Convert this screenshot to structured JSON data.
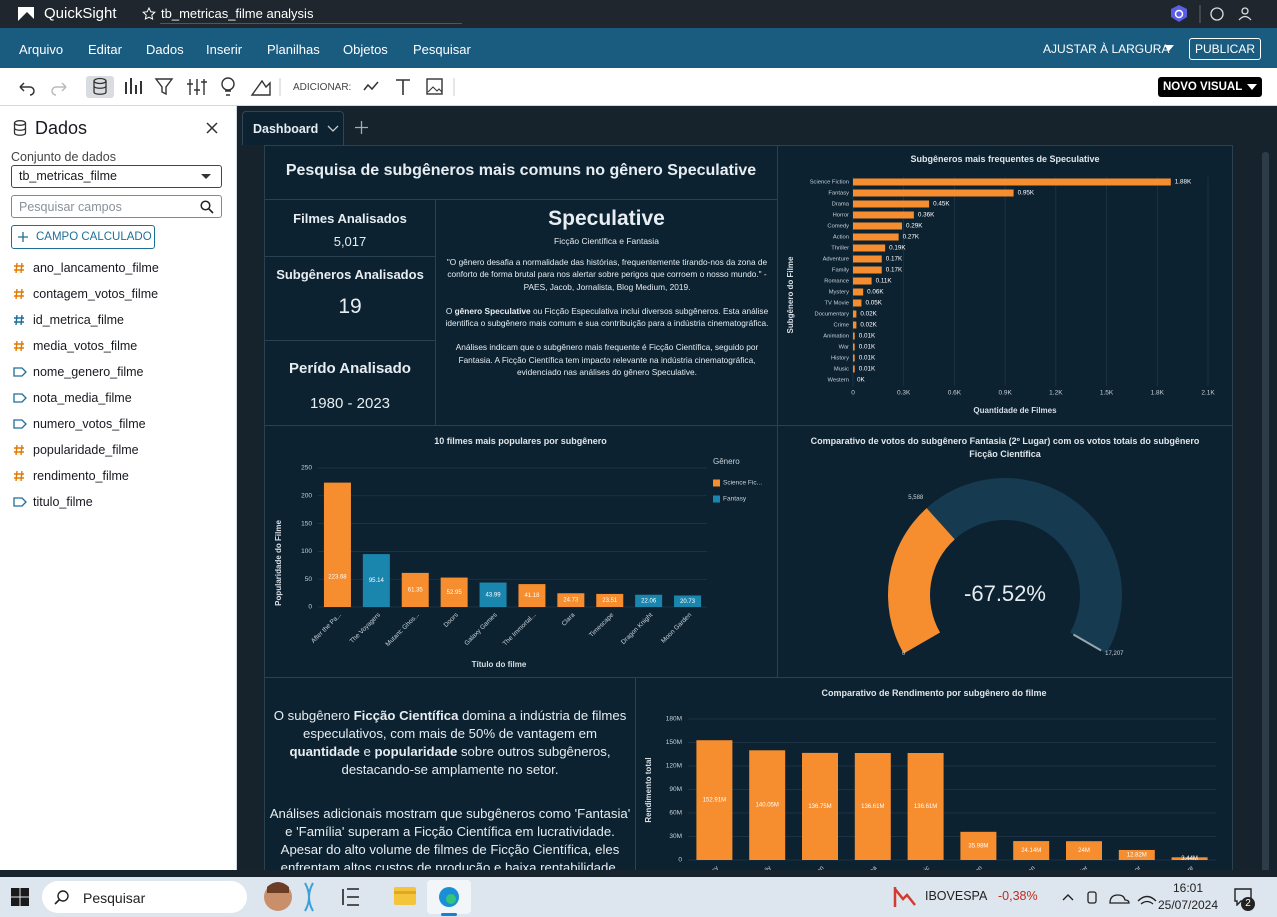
{
  "app": {
    "name": "QuickSight",
    "analysis": "tb_metricas_filme analysis"
  },
  "menu": [
    "Arquivo",
    "Editar",
    "Dados",
    "Inserir",
    "Planilhas",
    "Objetos",
    "Pesquisar"
  ],
  "menu_right": {
    "fit": "AJUSTAR À LARGURA",
    "publish": "PUBLICAR"
  },
  "toolbar": {
    "add": "ADICIONAR:",
    "new_visual": "NOVO VISUAL"
  },
  "sidebar": {
    "title": "Dados",
    "dataset_label": "Conjunto de dados",
    "dataset": "tb_metricas_filme",
    "search": "Pesquisar campos",
    "calc_button": "CAMPO CALCULADO",
    "fields": [
      {
        "name": "ano_lancamento_filme",
        "kind": "number"
      },
      {
        "name": "contagem_votos_filme",
        "kind": "number"
      },
      {
        "name": "id_metrica_filme",
        "kind": "id"
      },
      {
        "name": "media_votos_filme",
        "kind": "number"
      },
      {
        "name": "nome_genero_filme",
        "kind": "text"
      },
      {
        "name": "nota_media_filme",
        "kind": "text"
      },
      {
        "name": "numero_votos_filme",
        "kind": "text"
      },
      {
        "name": "popularidade_filme",
        "kind": "number"
      },
      {
        "name": "rendimento_filme",
        "kind": "number"
      },
      {
        "name": "titulo_filme",
        "kind": "text"
      }
    ]
  },
  "sheet_tab": "Dashboard",
  "dashboard": {
    "title": "Pesquisa de subgêneros mais comuns no gênero Speculative",
    "kpis": [
      {
        "label": "Filmes Analisados",
        "value": {
          "value": 5017,
          "label": "5,017"
        }
      },
      {
        "label": "Subgêneros Analisados",
        "value": 19
      },
      {
        "label": "Perído Analisado",
        "value": "1980 - 2023"
      }
    ],
    "genre_box": {
      "title": "Speculative",
      "subtitle": "Ficção Científica e Fantasia",
      "paragraphs": [
        [
          "\"O gênero desafia a normalidade das histórias, frequentemente tirando-nos da zona de conforto de forma brutal para nos alertar sobre perigos que corroem o nosso mundo.\" - PAES, Jacob, Jornalista, Blog Medium, 2019."
        ],
        [
          "O ",
          {
            "b": "gênero Speculative"
          },
          " ou Ficção Especulativa inclui diversos subgêneros. Esta análise identifica o subgênero mais comum e sua contribuição para a indústria cinematográfica."
        ],
        [
          "Análises indicam que o subgênero mais frequente é Ficção Científica, seguido por Fantasia. A Ficção Científica tem impacto relevante na indústria cinematográfica, evidenciado nas análises do gênero Speculative."
        ]
      ]
    },
    "insight": {
      "paragraphs": [
        [
          "O subgênero ",
          {
            "b": "Ficção Científica"
          },
          " domina a indústria de filmes especulativos, com mais de 50% de vantagem em ",
          {
            "b": "quantidade"
          },
          " e ",
          {
            "b": "popularidade"
          },
          " sobre outros subgêneros, destacando-se amplamente no setor."
        ],
        [
          "Análises adicionais mostram que subgêneros como 'Fantasia' e 'Família' superam a Ficção Científica em lucratividade. Apesar do alto volume de filmes de Ficção Científica, eles enfrentam altos custos de produção e baixa rentabilidade, conforme"
        ]
      ]
    }
  },
  "chart_data": [
    {
      "type": "bar",
      "horizontal": true,
      "title": "Subgêneros mais frequentes de Speculative",
      "categories": [
        "Science Fiction",
        "Fantasy",
        "Drama",
        "Horror",
        "Comedy",
        "Action",
        "Thriller",
        "Adventure",
        "Family",
        "Romance",
        "Mystery",
        "TV Movie",
        "Documentary",
        "Crime",
        "Animation",
        "War",
        "History",
        "Music",
        "Western"
      ],
      "values": [
        1880,
        950,
        450,
        360,
        290,
        270,
        190,
        170,
        170,
        110,
        60,
        50,
        20,
        20,
        10,
        10,
        10,
        10,
        0
      ],
      "value_labels": [
        "1.88K",
        "0.95K",
        "0.45K",
        "0.36K",
        "0.29K",
        "0.27K",
        "0.19K",
        "0.17K",
        "0.17K",
        "0.11K",
        "0.06K",
        "0.05K",
        "0.02K",
        "0.02K",
        "0.01K",
        "0.01K",
        "0.01K",
        "0.01K",
        "0K"
      ],
      "color": "#f68d2e",
      "xlim": [
        0,
        2100
      ],
      "xticks": [
        0,
        {
          "value": 300,
          "label": "0.3K"
        },
        {
          "value": 600,
          "label": "0.6K"
        },
        {
          "value": 900,
          "label": "0.9K"
        },
        {
          "value": 1200,
          "label": "1.2K"
        },
        {
          "value": 1500,
          "label": "1.5K"
        },
        {
          "value": 1800,
          "label": "1.8K"
        },
        {
          "value": 2100,
          "label": "2.1K"
        }
      ],
      "xlabel": "Quantidade de Filmes",
      "ylabel": "Subgênero do Filme",
      "grid": true
    },
    {
      "type": "bar",
      "title": "10 filmes mais populares por subgênero",
      "categories": [
        "After the Pa...",
        "The Voyagers",
        "Mutant: Ghos...",
        "Doors",
        "Galaxy Games",
        "The Immortal...",
        "Clara",
        "Timescape",
        "Dragon Knight",
        "Moon Garden"
      ],
      "series": [
        {
          "name": "Science Fic...",
          "color": "#f68d2e",
          "values": [
            223.68,
            null,
            61.35,
            52.95,
            null,
            41.18,
            24.73,
            23.51,
            null,
            null
          ]
        },
        {
          "name": "Fantasy",
          "color": "#1a86ad",
          "values": [
            null,
            95.14,
            null,
            null,
            43.99,
            null,
            null,
            null,
            22.06,
            20.73
          ]
        }
      ],
      "legend_title": "Gênero",
      "ylim": [
        0,
        250
      ],
      "yticks": [
        0,
        50,
        100,
        150,
        200,
        250
      ],
      "xlabel": "Título do filme",
      "ylabel": "Popularidade do Filme",
      "grid": true
    },
    {
      "type": "gauge",
      "title": "Comparativo de votos do subgênero Fantasia (2º Lugar) com os votos totais do subgênero Ficção Científica",
      "value": 5588,
      "value_label": "5,588",
      "min": 0,
      "max": 17207,
      "max_label": "17,207",
      "delta": -67.52,
      "delta_label": "-67.52%",
      "color": "#f68d2e",
      "track_color": "#163a4f"
    },
    {
      "type": "bar",
      "title": "Comparativo de Rendimento por subgênero do filme",
      "categories": [
        "Fantasy",
        "Family",
        "Science Fiction",
        "Drama",
        "Music",
        "Animation",
        "Action",
        "Thriller",
        "Horror",
        "Adventure"
      ],
      "values": [
        152910000,
        140050000,
        136750000,
        136610000,
        136610000,
        35980000,
        24140000,
        24000000,
        12820000,
        3440000
      ],
      "value_labels": [
        "152.91M",
        "140.05M",
        "136.75M",
        "136.61M",
        "136.61M",
        "35.98M",
        "24.14M",
        "24M",
        "12.82M",
        "3.44M"
      ],
      "color": "#f68d2e",
      "ylim": [
        0,
        180000000
      ],
      "yticks": [
        0,
        {
          "value": 30000000,
          "label": "30M"
        },
        {
          "value": 60000000,
          "label": "60M"
        },
        {
          "value": 90000000,
          "label": "90M"
        },
        {
          "value": 120000000,
          "label": "120M"
        },
        {
          "value": 150000000,
          "label": "150M"
        },
        {
          "value": 180000000,
          "label": "180M"
        }
      ],
      "ylabel": "Rendimento total",
      "grid": true
    }
  ],
  "taskbar": {
    "search": "Pesquisar",
    "ticker": "IBOVESPA",
    "change": "-0,38%",
    "time": "16:01",
    "date": "25/07/2024",
    "notifications": 2
  }
}
